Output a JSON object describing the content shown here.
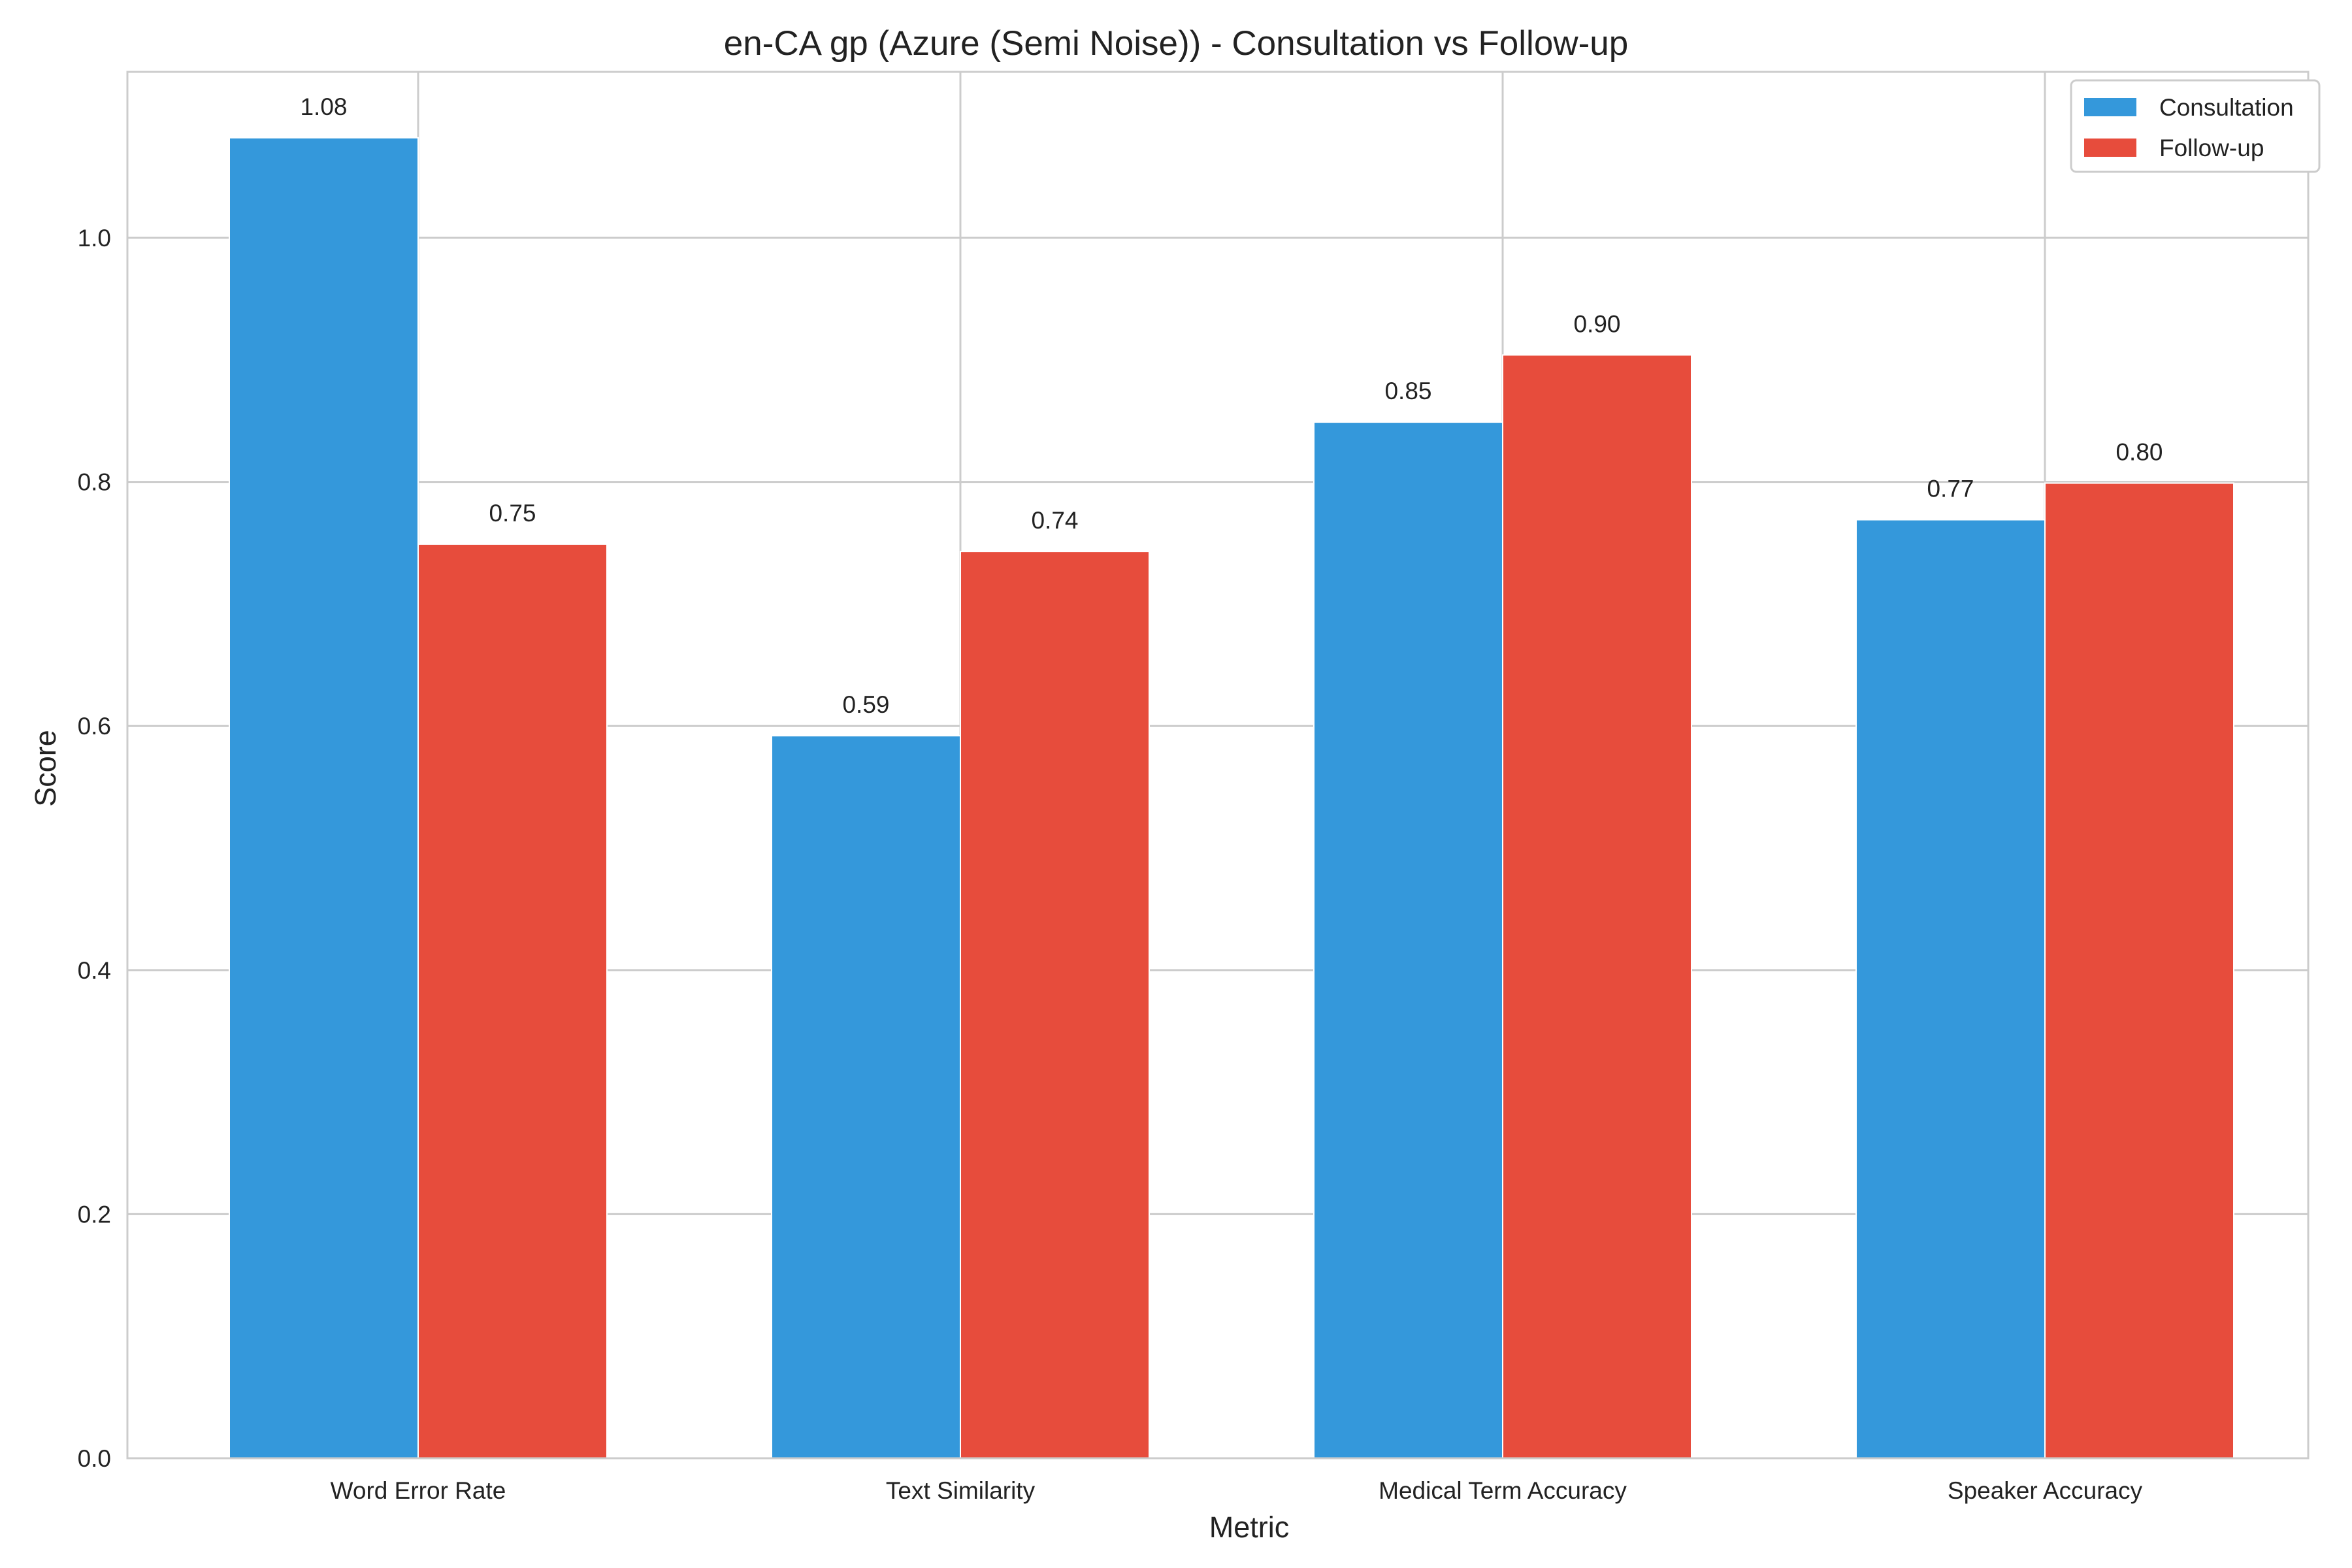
{
  "chart_data": {
    "type": "bar",
    "title": "en-CA gp (Azure (Semi Noise)) - Consultation vs Follow-up",
    "xlabel": "Metric",
    "ylabel": "Score",
    "categories": [
      "Word Error Rate",
      "Text Similarity",
      "Medical Term Accuracy",
      "Speaker Accuracy"
    ],
    "series": [
      {
        "name": "Consultation",
        "color": "#3498db",
        "values": [
          1.082,
          0.592,
          0.849,
          0.769
        ],
        "labels": [
          "1.08",
          "0.59",
          "0.85",
          "0.77"
        ]
      },
      {
        "name": "Follow-up",
        "color": "#e74c3c",
        "values": [
          0.749,
          0.743,
          0.904,
          0.799
        ],
        "labels": [
          "0.75",
          "0.74",
          "0.90",
          "0.80"
        ]
      }
    ],
    "ylim": [
      0,
      1.136
    ],
    "yticks": [
      0.0,
      0.2,
      0.4,
      0.6,
      0.8,
      1.0
    ],
    "ytick_labels": [
      "0.0",
      "0.2",
      "0.4",
      "0.6",
      "0.8",
      "1.0"
    ],
    "grid": true,
    "legend_position": "top-right"
  }
}
